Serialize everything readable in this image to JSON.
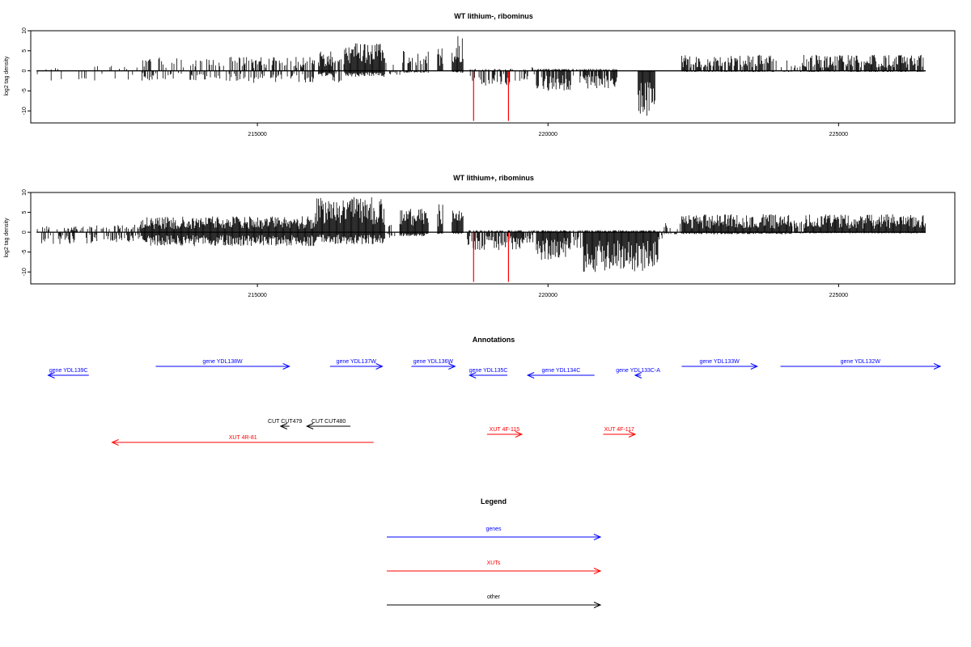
{
  "colors": {
    "gene": "#0000ff",
    "xut": "#ff0000",
    "other": "#000000",
    "bar": "#000000",
    "marker": "#ff0000"
  },
  "chart_data": [
    {
      "type": "bar",
      "title": "WT lithium-, ribominus",
      "ylabel": "log2 tag density",
      "xlim": [
        211100,
        227000
      ],
      "ylim": [
        -13,
        10
      ],
      "yticks": [
        10,
        5,
        0,
        -5,
        -10
      ],
      "xticks": [
        215000,
        220000,
        225000
      ],
      "markers": [
        {
          "x": 218720,
          "value": -12.5
        },
        {
          "x": 219320,
          "value": -12.5
        }
      ],
      "clusters": [
        {
          "start": 211200,
          "end": 212000,
          "density": 0.1,
          "pos": 1.0,
          "neg": 2.5
        },
        {
          "start": 212000,
          "end": 213000,
          "density": 0.12,
          "pos": 1.2,
          "neg": 2.5
        },
        {
          "start": 213000,
          "end": 214500,
          "density": 0.35,
          "pos": 3.5,
          "neg": 2.5
        },
        {
          "start": 214500,
          "end": 216000,
          "density": 0.45,
          "pos": 3.5,
          "neg": 3.0
        },
        {
          "start": 216050,
          "end": 216300,
          "density": 1.0,
          "pos": 5.0,
          "neg": 1.5
        },
        {
          "start": 216300,
          "end": 216500,
          "density": 0.4,
          "pos": 3.0,
          "neg": 3.0
        },
        {
          "start": 216500,
          "end": 217200,
          "density": 1.0,
          "pos": 7.0,
          "neg": 1.5
        },
        {
          "start": 217200,
          "end": 217500,
          "density": 0.2,
          "pos": 2.0,
          "neg": 1.0
        },
        {
          "start": 217500,
          "end": 217950,
          "density": 0.6,
          "pos": 5.0,
          "neg": 0.5
        },
        {
          "start": 218100,
          "end": 218200,
          "density": 1.0,
          "pos": 6.0,
          "neg": 0.0
        },
        {
          "start": 218350,
          "end": 218550,
          "density": 1.0,
          "pos": 9.0,
          "neg": 0.5
        },
        {
          "start": 218650,
          "end": 219400,
          "density": 0.5,
          "pos": 0.5,
          "neg": 4.0
        },
        {
          "start": 219400,
          "end": 219800,
          "density": 0.2,
          "pos": 1.0,
          "neg": 2.5
        },
        {
          "start": 219800,
          "end": 220400,
          "density": 0.9,
          "pos": 0.5,
          "neg": 5.0
        },
        {
          "start": 220400,
          "end": 220600,
          "density": 0.3,
          "pos": 0.5,
          "neg": 3.0
        },
        {
          "start": 220600,
          "end": 221200,
          "density": 0.9,
          "pos": 0.5,
          "neg": 4.5
        },
        {
          "start": 221550,
          "end": 221850,
          "density": 1.0,
          "pos": 0.0,
          "neg": 12.0
        },
        {
          "start": 222300,
          "end": 223900,
          "density": 0.7,
          "pos": 4.0,
          "neg": 0.3
        },
        {
          "start": 223900,
          "end": 224400,
          "density": 0.25,
          "pos": 3.0,
          "neg": 0.3
        },
        {
          "start": 224400,
          "end": 226500,
          "density": 0.8,
          "pos": 4.0,
          "neg": 0.3
        }
      ]
    },
    {
      "type": "bar",
      "title": "WT lithium+, ribominus",
      "ylabel": "log2 tag density",
      "xlim": [
        211100,
        227000
      ],
      "ylim": [
        -13,
        10
      ],
      "yticks": [
        10,
        5,
        0,
        -5,
        -10
      ],
      "xticks": [
        215000,
        220000,
        225000
      ],
      "markers": [
        {
          "x": 218720,
          "value": -12.5
        },
        {
          "x": 219320,
          "value": -12.5
        }
      ],
      "clusters": [
        {
          "start": 211200,
          "end": 212200,
          "density": 0.35,
          "pos": 1.5,
          "neg": 3.0
        },
        {
          "start": 212200,
          "end": 213000,
          "density": 0.4,
          "pos": 2.0,
          "neg": 2.5
        },
        {
          "start": 213000,
          "end": 216000,
          "density": 1.0,
          "pos": 4.0,
          "neg": 3.5
        },
        {
          "start": 216000,
          "end": 217200,
          "density": 1.0,
          "pos": 9.0,
          "neg": 3.0
        },
        {
          "start": 217200,
          "end": 217400,
          "density": 0.4,
          "pos": 2.5,
          "neg": 1.5
        },
        {
          "start": 217450,
          "end": 217950,
          "density": 1.0,
          "pos": 6.0,
          "neg": 1.0
        },
        {
          "start": 218100,
          "end": 218200,
          "density": 1.0,
          "pos": 7.0,
          "neg": 0.5
        },
        {
          "start": 218350,
          "end": 218550,
          "density": 1.0,
          "pos": 5.5,
          "neg": 0.5
        },
        {
          "start": 218600,
          "end": 219600,
          "density": 0.8,
          "pos": 0.5,
          "neg": 4.5
        },
        {
          "start": 219600,
          "end": 219800,
          "density": 0.4,
          "pos": 0.5,
          "neg": 3.0
        },
        {
          "start": 219800,
          "end": 220400,
          "density": 1.0,
          "pos": 0.5,
          "neg": 7.0
        },
        {
          "start": 220400,
          "end": 220600,
          "density": 0.5,
          "pos": 0.5,
          "neg": 5.0
        },
        {
          "start": 220600,
          "end": 221900,
          "density": 1.0,
          "pos": 0.5,
          "neg": 10.0
        },
        {
          "start": 221900,
          "end": 222000,
          "density": 0.5,
          "pos": 0.5,
          "neg": 2.0
        },
        {
          "start": 222000,
          "end": 222300,
          "density": 0.5,
          "pos": 2.5,
          "neg": 0.5
        },
        {
          "start": 222300,
          "end": 224200,
          "density": 1.0,
          "pos": 4.5,
          "neg": 0.5
        },
        {
          "start": 224200,
          "end": 224400,
          "density": 0.5,
          "pos": 3.0,
          "neg": 0.3
        },
        {
          "start": 224400,
          "end": 226500,
          "density": 1.0,
          "pos": 4.5,
          "neg": 0.3
        }
      ]
    }
  ],
  "annotations": {
    "title": "Annotations",
    "items": [
      {
        "label": "gene YDL139C",
        "type": "gene",
        "start": 211400,
        "end": 212100,
        "strand": "-",
        "row": 1
      },
      {
        "label": "gene YDL138W",
        "type": "gene",
        "start": 213250,
        "end": 215550,
        "strand": "+",
        "row": 0
      },
      {
        "label": "gene YDL137W",
        "type": "gene",
        "start": 216250,
        "end": 217150,
        "strand": "+",
        "row": 0
      },
      {
        "label": "gene YDL136W",
        "type": "gene",
        "start": 217650,
        "end": 218400,
        "strand": "+",
        "row": 0
      },
      {
        "label": "gene YDL135C",
        "type": "gene",
        "start": 218650,
        "end": 219300,
        "strand": "-",
        "row": 1
      },
      {
        "label": "gene YDL134C",
        "type": "gene",
        "start": 219650,
        "end": 220800,
        "strand": "-",
        "row": 1
      },
      {
        "label": "gene YDL133C-A",
        "type": "gene",
        "start": 221500,
        "end": 221600,
        "strand": "-",
        "row": 1
      },
      {
        "label": "gene YDL133W",
        "type": "gene",
        "start": 222300,
        "end": 223600,
        "strand": "+",
        "row": 0
      },
      {
        "label": "gene YDL132W",
        "type": "gene",
        "start": 224000,
        "end": 226750,
        "strand": "+",
        "row": 0
      },
      {
        "label": "CUT CUT479",
        "type": "other",
        "start": 215400,
        "end": 215550,
        "strand": "-",
        "row": 4
      },
      {
        "label": "CUT CUT480",
        "type": "other",
        "start": 215850,
        "end": 216600,
        "strand": "-",
        "row": 4
      },
      {
        "label": "XUT 4R-81",
        "type": "xut",
        "start": 212500,
        "end": 217000,
        "strand": "-",
        "row": 6
      },
      {
        "label": "XUT 4F-115",
        "type": "xut",
        "start": 218950,
        "end": 219550,
        "strand": "+",
        "row": 5
      },
      {
        "label": "XUT 4F-117",
        "type": "xut",
        "start": 220950,
        "end": 221500,
        "strand": "+",
        "row": 5
      }
    ]
  },
  "legend": {
    "title": "Legend",
    "items": [
      {
        "label": "genes",
        "type": "gene"
      },
      {
        "label": "XUTs",
        "type": "xut"
      },
      {
        "label": "other",
        "type": "other"
      }
    ]
  }
}
